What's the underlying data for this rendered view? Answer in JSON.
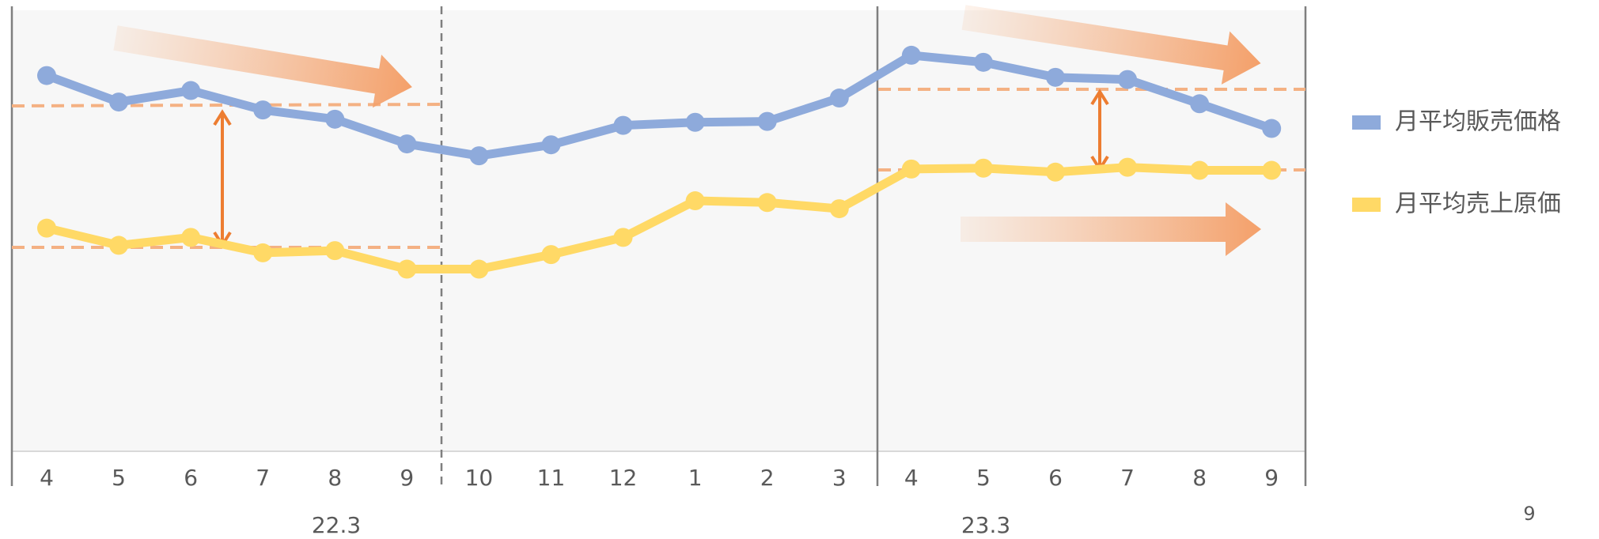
{
  "chart_data": {
    "type": "line",
    "categories": [
      "4",
      "5",
      "6",
      "7",
      "8",
      "9",
      "10",
      "11",
      "12",
      "1",
      "2",
      "3",
      "4",
      "5",
      "6",
      "7",
      "8",
      "9"
    ],
    "groups": [
      "22.3",
      "23.3"
    ],
    "ylim": [
      0,
      100
    ],
    "series": [
      {
        "name": "月平均販売価格",
        "color": "#8eaadb",
        "values": [
          85.2,
          79.2,
          81.8,
          77.4,
          75.3,
          69.7,
          67.0,
          69.5,
          73.9,
          74.6,
          74.8,
          80.1,
          89.8,
          88.2,
          84.8,
          84.3,
          78.8,
          73.2
        ]
      },
      {
        "name": "月平均売上原価",
        "color": "#ffd966",
        "values": [
          50.6,
          46.7,
          48.5,
          45.0,
          45.5,
          41.3,
          41.3,
          44.6,
          48.5,
          56.8,
          56.4,
          55.0,
          64.0,
          64.2,
          63.3,
          64.4,
          63.7,
          63.7
        ]
      }
    ],
    "page_number": "9"
  }
}
